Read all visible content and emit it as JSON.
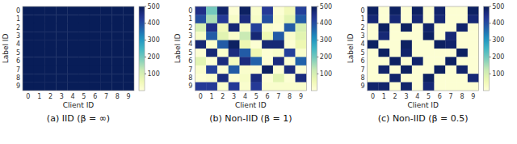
{
  "chart_data": [
    {
      "type": "heatmap",
      "title": "(a) IID (β = ∞)",
      "x_label": "Client ID",
      "y_label": "Label ID",
      "color": "YlGnBu",
      "x_categories": [
        "0",
        "1",
        "2",
        "3",
        "4",
        "5",
        "6",
        "7",
        "8",
        "9"
      ],
      "y_categories": [
        "0",
        "1",
        "2",
        "3",
        "4",
        "5",
        "6",
        "7",
        "8",
        "9"
      ],
      "values": [
        [
          500,
          500,
          500,
          500,
          500,
          500,
          500,
          500,
          500,
          500
        ],
        [
          500,
          500,
          500,
          500,
          500,
          500,
          500,
          500,
          500,
          500
        ],
        [
          500,
          500,
          500,
          500,
          500,
          500,
          500,
          500,
          500,
          500
        ],
        [
          500,
          500,
          500,
          500,
          500,
          500,
          500,
          500,
          500,
          500
        ],
        [
          500,
          500,
          500,
          500,
          500,
          500,
          500,
          500,
          500,
          500
        ],
        [
          500,
          500,
          500,
          500,
          500,
          500,
          500,
          500,
          500,
          500
        ],
        [
          500,
          500,
          500,
          500,
          500,
          500,
          500,
          500,
          500,
          500
        ],
        [
          500,
          500,
          500,
          500,
          500,
          500,
          500,
          500,
          500,
          500
        ],
        [
          500,
          500,
          500,
          500,
          500,
          500,
          500,
          500,
          500,
          500
        ],
        [
          500,
          500,
          500,
          500,
          500,
          500,
          500,
          500,
          500,
          500
        ]
      ],
      "colorbar_range": [
        0,
        500
      ],
      "colorbar_ticks": [
        100,
        200,
        300,
        400,
        500
      ]
    },
    {
      "type": "heatmap",
      "title": "(b) Non-IID (β = 1)",
      "x_label": "Client ID",
      "y_label": "Label ID",
      "color": "YlGnBu",
      "x_categories": [
        "0",
        "1",
        "2",
        "3",
        "4",
        "5",
        "6",
        "7",
        "8",
        "9"
      ],
      "y_categories": [
        "0",
        "1",
        "2",
        "3",
        "4",
        "5",
        "6",
        "7",
        "8",
        "9"
      ],
      "values": [
        [
          450,
          200,
          480,
          10,
          490,
          20,
          430,
          10,
          50,
          420
        ],
        [
          400,
          150,
          430,
          30,
          460,
          30,
          400,
          20,
          80,
          380
        ],
        [
          100,
          450,
          50,
          470,
          30,
          420,
          20,
          10,
          380,
          100
        ],
        [
          30,
          380,
          80,
          20,
          120,
          470,
          60,
          380,
          20,
          80
        ],
        [
          470,
          20,
          380,
          490,
          60,
          10,
          470,
          470,
          10,
          60
        ],
        [
          10,
          470,
          20,
          460,
          380,
          60,
          10,
          20,
          420,
          20
        ],
        [
          80,
          10,
          460,
          40,
          460,
          370,
          10,
          460,
          10,
          370
        ],
        [
          20,
          420,
          10,
          380,
          20,
          10,
          490,
          10,
          460,
          10
        ],
        [
          10,
          20,
          460,
          10,
          30,
          460,
          10,
          80,
          10,
          460
        ],
        [
          430,
          430,
          20,
          430,
          20,
          430,
          20,
          20,
          20,
          20
        ]
      ],
      "colorbar_range": [
        0,
        500
      ],
      "colorbar_ticks": [
        100,
        200,
        300,
        400,
        500
      ]
    },
    {
      "type": "heatmap",
      "title": "(c) Non-IID (β = 0.5)",
      "x_label": "Client ID",
      "y_label": "Label ID",
      "color": "YlGnBu",
      "x_categories": [
        "0",
        "1",
        "2",
        "3",
        "4",
        "5",
        "6",
        "7",
        "8",
        "9"
      ],
      "y_categories": [
        "0",
        "1",
        "2",
        "3",
        "4",
        "5",
        "6",
        "7",
        "8",
        "9"
      ],
      "values": [
        [
          490,
          10,
          490,
          10,
          490,
          10,
          480,
          10,
          10,
          490
        ],
        [
          470,
          10,
          470,
          10,
          470,
          10,
          470,
          10,
          10,
          470
        ],
        [
          10,
          490,
          10,
          490,
          10,
          480,
          10,
          10,
          480,
          10
        ],
        [
          10,
          470,
          10,
          10,
          10,
          490,
          10,
          470,
          10,
          10
        ],
        [
          490,
          10,
          10,
          490,
          10,
          10,
          490,
          480,
          10,
          10
        ],
        [
          10,
          490,
          10,
          480,
          10,
          10,
          10,
          10,
          490,
          10
        ],
        [
          10,
          10,
          490,
          10,
          480,
          10,
          10,
          490,
          10,
          10
        ],
        [
          10,
          480,
          10,
          490,
          10,
          10,
          490,
          10,
          480,
          10
        ],
        [
          10,
          10,
          480,
          10,
          10,
          490,
          10,
          10,
          10,
          470
        ],
        [
          480,
          480,
          10,
          480,
          10,
          470,
          10,
          10,
          10,
          10
        ]
      ],
      "colorbar_range": [
        0,
        500
      ],
      "colorbar_ticks": [
        100,
        200,
        300,
        400,
        500
      ]
    }
  ]
}
